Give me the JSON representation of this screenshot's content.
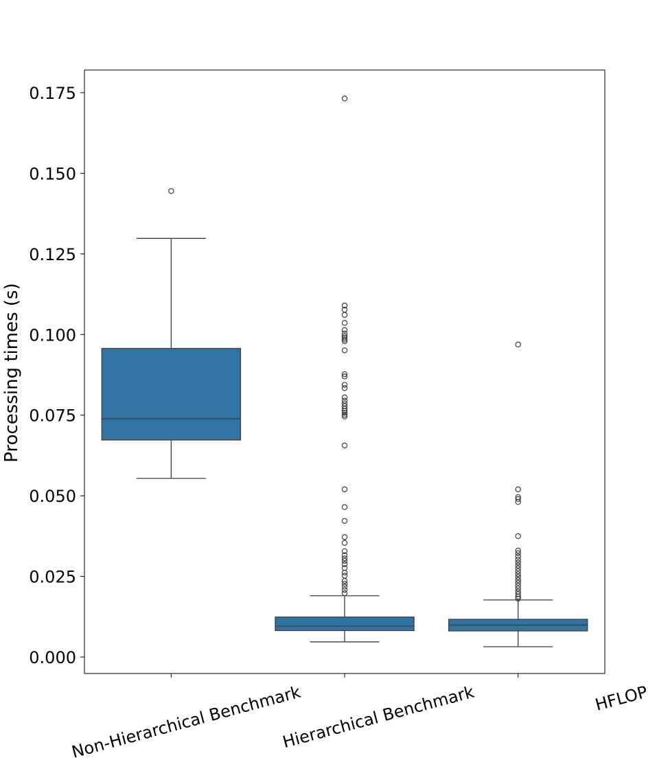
{
  "chart_data": {
    "type": "boxplot",
    "title": "",
    "xlabel": "",
    "ylabel": "Processing times (s)",
    "ylim": [
      -0.005,
      0.182
    ],
    "yticks": [
      0.0,
      0.025,
      0.05,
      0.075,
      0.1,
      0.125,
      0.15,
      0.175
    ],
    "ytick_labels": [
      "0.000",
      "0.025",
      "0.050",
      "0.075",
      "0.100",
      "0.125",
      "0.150",
      "0.175"
    ],
    "grid": false,
    "legend": "none",
    "box_color": "#3274a1",
    "line_color": "#3d3d3d",
    "categories": [
      "Non-Hierarchical Benchmark",
      "Hierarchical Benchmark",
      "HFLOP"
    ],
    "boxes": [
      {
        "category": "Non-Hierarchical Benchmark",
        "whisker_low": 0.0554,
        "q1": 0.0673,
        "median": 0.0739,
        "q3": 0.0957,
        "whisker_high": 0.1298,
        "outliers": [
          0.1445
        ]
      },
      {
        "category": "Hierarchical Benchmark",
        "whisker_low": 0.0047,
        "q1": 0.0082,
        "median": 0.0096,
        "q3": 0.0124,
        "whisker_high": 0.019,
        "outliers": [
          0.1732,
          0.109,
          0.1077,
          0.1061,
          0.1036,
          0.1014,
          0.1003,
          0.0995,
          0.0989,
          0.0984,
          0.0979,
          0.0951,
          0.0877,
          0.087,
          0.0844,
          0.0834,
          0.0805,
          0.0795,
          0.0786,
          0.0778,
          0.077,
          0.0763,
          0.0757,
          0.0751,
          0.0746,
          0.0656,
          0.052,
          0.0465,
          0.0422,
          0.0372,
          0.0354,
          0.0328,
          0.0316,
          0.0306,
          0.0298,
          0.0288,
          0.0276,
          0.0262,
          0.0252,
          0.0236,
          0.0227,
          0.0218,
          0.0208,
          0.0198
        ]
      },
      {
        "category": "HFLOP",
        "whisker_low": 0.0032,
        "q1": 0.0081,
        "median": 0.0099,
        "q3": 0.0117,
        "whisker_high": 0.0177,
        "outliers": [
          0.0969,
          0.052,
          0.0496,
          0.049,
          0.0481,
          0.0375,
          0.033,
          0.0322,
          0.0312,
          0.0302,
          0.0293,
          0.0284,
          0.0275,
          0.0266,
          0.0257,
          0.0248,
          0.0239,
          0.023,
          0.0221,
          0.0212,
          0.0203,
          0.0195,
          0.0187,
          0.0181
        ]
      }
    ]
  }
}
